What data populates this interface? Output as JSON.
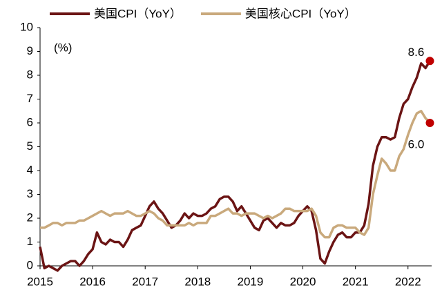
{
  "chart_data": {
    "type": "line",
    "y_label": "(%)",
    "x": [
      2015,
      2015.083,
      2015.167,
      2015.25,
      2015.333,
      2015.417,
      2015.5,
      2015.583,
      2015.667,
      2015.75,
      2015.833,
      2015.917,
      2016,
      2016.083,
      2016.167,
      2016.25,
      2016.333,
      2016.417,
      2016.5,
      2016.583,
      2016.667,
      2016.75,
      2016.833,
      2016.917,
      2017,
      2017.083,
      2017.167,
      2017.25,
      2017.333,
      2017.417,
      2017.5,
      2017.583,
      2017.667,
      2017.75,
      2017.833,
      2017.917,
      2018,
      2018.083,
      2018.167,
      2018.25,
      2018.333,
      2018.417,
      2018.5,
      2018.583,
      2018.667,
      2018.75,
      2018.833,
      2018.917,
      2019,
      2019.083,
      2019.167,
      2019.25,
      2019.333,
      2019.417,
      2019.5,
      2019.583,
      2019.667,
      2019.75,
      2019.833,
      2019.917,
      2020,
      2020.083,
      2020.167,
      2020.25,
      2020.333,
      2020.417,
      2020.5,
      2020.583,
      2020.667,
      2020.75,
      2020.833,
      2020.917,
      2021,
      2021.083,
      2021.167,
      2021.25,
      2021.333,
      2021.417,
      2021.5,
      2021.583,
      2021.667,
      2021.75,
      2021.833,
      2021.917,
      2022,
      2022.083,
      2022.167,
      2022.25,
      2022.333,
      2022.417
    ],
    "series": [
      {
        "name": "美国CPI（YoY）",
        "color": "#6b1414",
        "values": [
          0.8,
          -0.1,
          0.0,
          -0.1,
          -0.2,
          0.0,
          0.1,
          0.2,
          0.2,
          0.0,
          0.2,
          0.5,
          0.7,
          1.4,
          1.0,
          0.9,
          1.1,
          1.0,
          1.0,
          0.8,
          1.1,
          1.5,
          1.6,
          1.7,
          2.1,
          2.5,
          2.7,
          2.4,
          2.2,
          1.9,
          1.6,
          1.7,
          1.9,
          2.2,
          2.0,
          2.2,
          2.1,
          2.1,
          2.2,
          2.4,
          2.5,
          2.8,
          2.9,
          2.9,
          2.7,
          2.3,
          2.5,
          2.2,
          1.9,
          1.6,
          1.5,
          1.9,
          2.0,
          1.8,
          1.6,
          1.8,
          1.7,
          1.7,
          1.8,
          2.1,
          2.3,
          2.5,
          2.3,
          1.5,
          0.3,
          0.1,
          0.6,
          1.0,
          1.3,
          1.4,
          1.2,
          1.2,
          1.4,
          1.4,
          1.7,
          2.6,
          4.2,
          5.0,
          5.4,
          5.4,
          5.3,
          5.4,
          6.2,
          6.8,
          7.0,
          7.5,
          7.9,
          8.5,
          8.3,
          8.6
        ]
      },
      {
        "name": "美国核心CPI（YoY）",
        "color": "#c9a97c",
        "values": [
          1.6,
          1.6,
          1.7,
          1.8,
          1.8,
          1.7,
          1.8,
          1.8,
          1.8,
          1.9,
          1.9,
          2.0,
          2.1,
          2.2,
          2.3,
          2.2,
          2.1,
          2.2,
          2.2,
          2.2,
          2.3,
          2.2,
          2.1,
          2.1,
          2.2,
          2.3,
          2.2,
          2.0,
          1.9,
          1.7,
          1.7,
          1.7,
          1.7,
          1.7,
          1.8,
          1.7,
          1.8,
          1.8,
          1.8,
          2.1,
          2.1,
          2.2,
          2.3,
          2.4,
          2.2,
          2.2,
          2.1,
          2.2,
          2.2,
          2.2,
          2.1,
          2.0,
          2.1,
          2.0,
          2.1,
          2.2,
          2.4,
          2.4,
          2.3,
          2.3,
          2.3,
          2.3,
          2.4,
          2.1,
          1.4,
          1.2,
          1.2,
          1.6,
          1.7,
          1.7,
          1.6,
          1.6,
          1.6,
          1.4,
          1.3,
          1.6,
          3.0,
          3.8,
          4.5,
          4.3,
          4.0,
          4.0,
          4.6,
          4.9,
          5.5,
          6.0,
          6.4,
          6.5,
          6.2,
          6.0
        ]
      }
    ],
    "annotations": [
      "8.6",
      "6.0"
    ],
    "end_marker_color": "#c00000",
    "xlim": [
      2015,
      2022.45
    ],
    "xticks": [
      2015,
      2016,
      2017,
      2018,
      2019,
      2020,
      2021,
      2022
    ],
    "ylim": [
      0,
      10
    ],
    "yticks": [
      0,
      1,
      2,
      3,
      4,
      5,
      6,
      7,
      8,
      9,
      10
    ],
    "grid": false
  }
}
